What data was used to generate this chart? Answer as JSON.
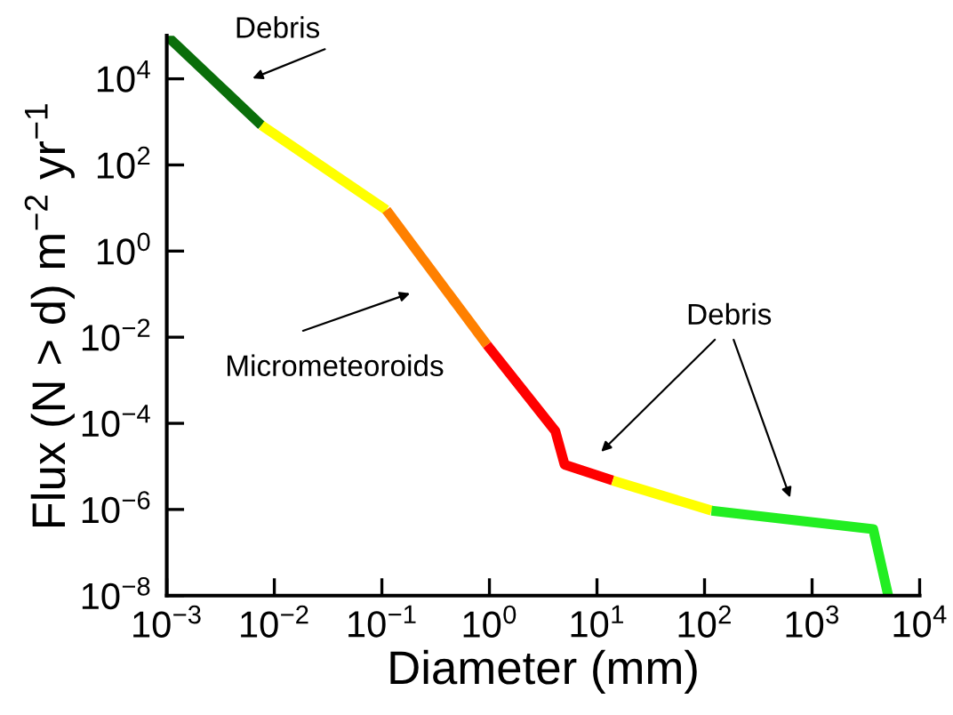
{
  "chart_data": {
    "type": "line",
    "log": "xy",
    "xlabel": "Diameter (mm)",
    "ylabel": "Flux (N > d) m$^{−2}$ yr$^{−1}$",
    "xlim": [
      0.001,
      10000
    ],
    "ylim": [
      1e-08,
      100000
    ],
    "xticks": [
      {
        "value": 0.001,
        "label": "10$^{−3}$"
      },
      {
        "value": 0.01,
        "label": "10$^{−2}$"
      },
      {
        "value": 0.1,
        "label": "10$^{−1}$"
      },
      {
        "value": 1,
        "label": "10$^{0}$"
      },
      {
        "value": 10,
        "label": "10$^{1}$"
      },
      {
        "value": 100,
        "label": "10$^{2}$"
      },
      {
        "value": 1000,
        "label": "10$^{3}$"
      },
      {
        "value": 10000,
        "label": "10$^{4}$"
      }
    ],
    "yticks": [
      {
        "value": 1e-08,
        "label": "10$^{−8}$"
      },
      {
        "value": 1e-06,
        "label": "10$^{−6}$"
      },
      {
        "value": 0.0001,
        "label": "10$^{−4}$"
      },
      {
        "value": 0.01,
        "label": "10$^{−2}$"
      },
      {
        "value": 1,
        "label": "10$^{0}$"
      },
      {
        "value": 100,
        "label": "10$^{2}$"
      },
      {
        "value": 10000,
        "label": "10$^{4}$"
      }
    ],
    "grid": false,
    "marker": "none",
    "line_style": "solid",
    "series": [
      {
        "color": "#0a6e0a",
        "x": [
          0.001,
          0.0076
        ],
        "values": [
          100000,
          830
        ]
      },
      {
        "color": "#ffff00",
        "x": [
          0.0076,
          0.11
        ],
        "values": [
          830,
          9
        ]
      },
      {
        "color": "#ff8000",
        "x": [
          0.11,
          0.95
        ],
        "values": [
          9,
          0.0066
        ]
      },
      {
        "color": "#ff0000",
        "x": [
          0.95,
          4.1,
          5.0,
          14
        ],
        "values": [
          0.0066,
          6.6e-05,
          1.1e-05,
          4.7e-06
        ]
      },
      {
        "color": "#ffff00",
        "x": [
          14,
          116
        ],
        "values": [
          4.7e-06,
          9.4e-07
        ]
      },
      {
        "color": "#22ee22",
        "x": [
          116,
          3700,
          5100
        ],
        "values": [
          9.4e-07,
          3.5e-07,
          1e-08
        ]
      }
    ],
    "annotations": [
      "Debris",
      "Micrometeoroids",
      "Debris"
    ]
  }
}
